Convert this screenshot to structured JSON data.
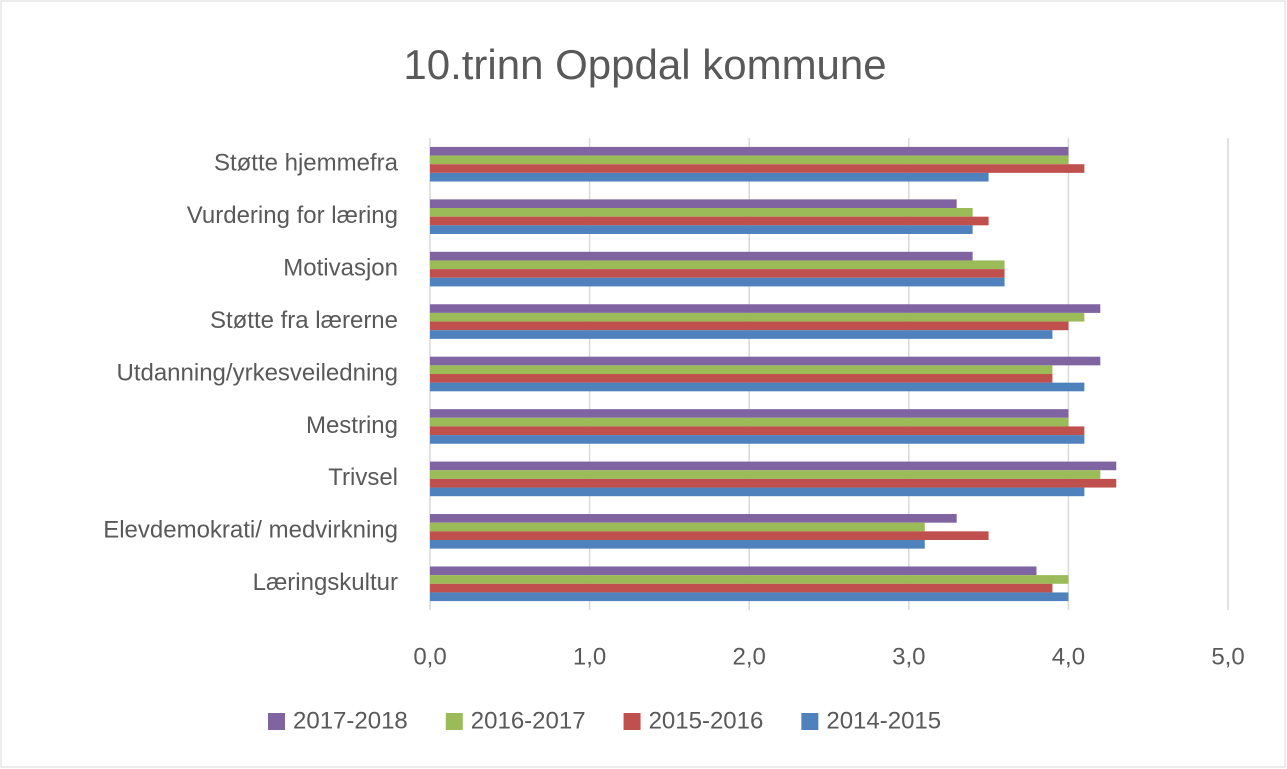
{
  "chart_data": {
    "type": "barh",
    "title": "10.trinn Oppdal kommune",
    "categories": [
      "Støtte hjemmefra",
      "Vurdering for læring",
      "Motivasjon",
      "Støtte fra lærerne",
      "Utdanning/yrkesveiledning",
      "Mestring",
      "Trivsel",
      "Elevdemokrati/ medvirkning",
      "Læringskultur"
    ],
    "series": [
      {
        "name": "2017-2018",
        "color": "#8064a2",
        "values": [
          4.0,
          3.3,
          3.4,
          4.2,
          4.2,
          4.0,
          4.3,
          3.3,
          3.8
        ]
      },
      {
        "name": "2016-2017",
        "color": "#9bbb59",
        "values": [
          4.0,
          3.4,
          3.6,
          4.1,
          3.9,
          4.0,
          4.2,
          3.1,
          4.0
        ]
      },
      {
        "name": "2015-2016",
        "color": "#c0504d",
        "values": [
          4.1,
          3.5,
          3.6,
          4.0,
          3.9,
          4.1,
          4.3,
          3.5,
          3.9
        ]
      },
      {
        "name": "2014-2015",
        "color": "#4f81bd",
        "values": [
          3.5,
          3.4,
          3.6,
          3.9,
          4.1,
          4.1,
          4.1,
          3.1,
          4.0
        ]
      }
    ],
    "xlim": [
      0,
      5
    ],
    "xticks": [
      {
        "value": 0,
        "label": "0,0"
      },
      {
        "value": 1,
        "label": "1,0"
      },
      {
        "value": 2,
        "label": "2,0"
      },
      {
        "value": 3,
        "label": "3,0"
      },
      {
        "value": 4,
        "label": "4,0"
      },
      {
        "value": 5,
        "label": "5,0"
      }
    ],
    "grid": true,
    "legend": "bottom"
  }
}
